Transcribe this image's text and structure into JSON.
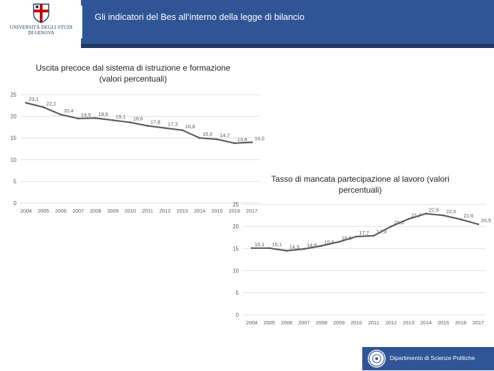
{
  "header": {
    "title": "Gli indicatori del Bes all’interno della legge di bilancio",
    "logo_line1": "UNIVERSITÀ DEGLI STUDI",
    "logo_line2": "DI GENOVA"
  },
  "colors": {
    "band": "#2f5597",
    "stripe": "#1f3864",
    "line": "#595959",
    "grid": "#d9d9d9",
    "axis_text": "#595959"
  },
  "chart_data": [
    {
      "type": "line",
      "title_line1": "Uscita precoce dal sistema di istruzione e formazione",
      "title_line2": "(valori percentuali)",
      "categories": [
        "2004",
        "2005",
        "2006",
        "2007",
        "2008",
        "2009",
        "2010",
        "2011",
        "2012",
        "2013",
        "2014",
        "2015",
        "2016",
        "2017"
      ],
      "y_ticks": [
        "0",
        "5",
        "10",
        "15",
        "20",
        "25"
      ],
      "series": [
        {
          "name": "Uscita precoce",
          "values": [
            23.1,
            22.1,
            20.4,
            19.5,
            19.6,
            19.1,
            18.6,
            17.8,
            17.3,
            16.8,
            15.0,
            14.7,
            13.8,
            14.0
          ],
          "labels": [
            "23,1",
            "22,1",
            "20,4",
            "19,5",
            "19,6",
            "19,1",
            "18,6",
            "17,8",
            "17,3",
            "16,8",
            "15,0",
            "14,7",
            "13,8",
            "14,0"
          ]
        }
      ],
      "ylim": [
        0,
        25
      ]
    },
    {
      "type": "line",
      "title_line1": "Tasso di mancata partecipazione al lavoro  (valori",
      "title_line2": "percentuali)",
      "categories": [
        "2004",
        "2005",
        "2006",
        "2007",
        "2008",
        "2009",
        "2010",
        "2011",
        "2012",
        "2013",
        "2014",
        "2015",
        "2016",
        "2017"
      ],
      "y_ticks": [
        "0",
        "5",
        "10",
        "15",
        "20",
        "25"
      ],
      "series": [
        {
          "name": "Mancata partecipazione",
          "values": [
            15.1,
            15.1,
            14.5,
            14.9,
            15.6,
            16.5,
            17.7,
            17.9,
            20.0,
            21.7,
            22.9,
            22.5,
            21.6,
            20.5
          ],
          "labels": [
            "15,1",
            "15,1",
            "14,5",
            "14,9",
            "15,6",
            "16,5",
            "17,7",
            "17,9",
            "20,0",
            "21,7",
            "22,9",
            "22,5",
            "21,6",
            "20,5"
          ]
        }
      ],
      "ylim": [
        0,
        25
      ]
    }
  ],
  "footer": {
    "text": "Dipartimento di Scienze Politiche"
  }
}
